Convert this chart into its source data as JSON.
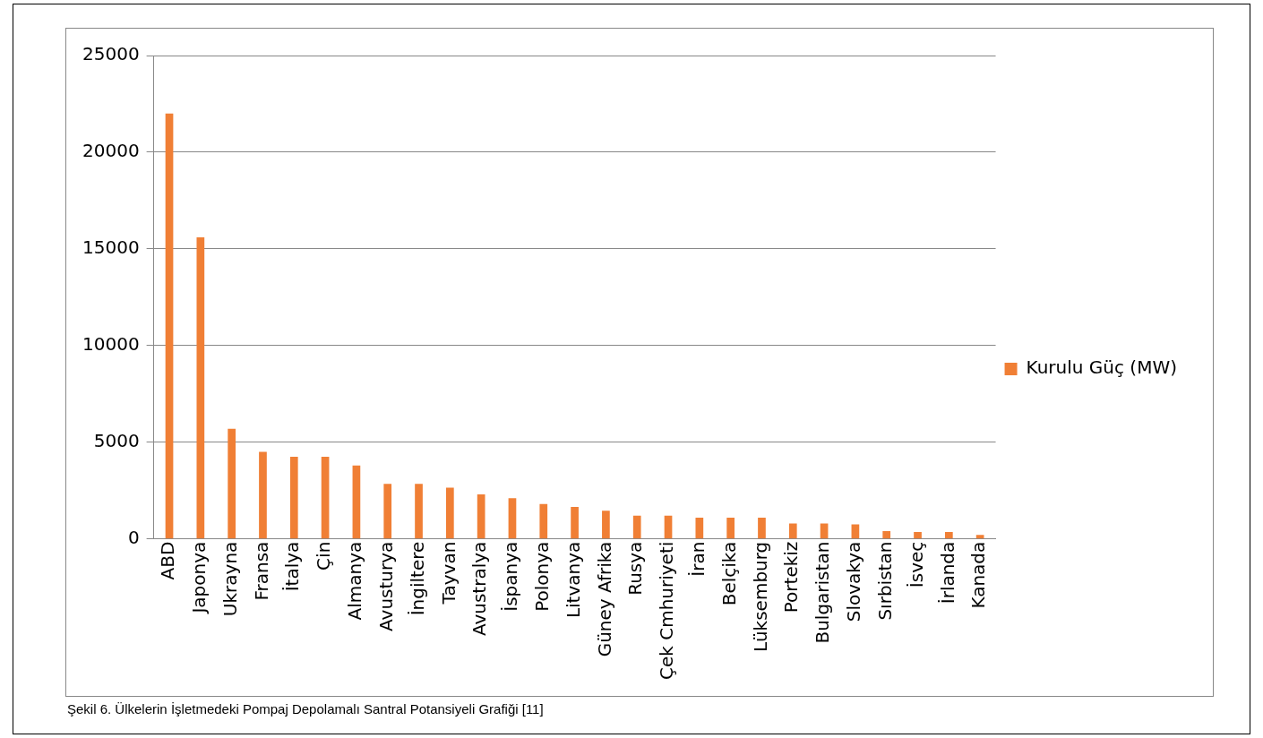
{
  "chart_data": {
    "type": "bar",
    "categories": [
      "ABD",
      "Japonya",
      "Ukrayna",
      "Fransa",
      "İtalya",
      "Çin",
      "Almanya",
      "Avusturya",
      "İngiltere",
      "Tayvan",
      "Avustralya",
      "İspanya",
      "Polonya",
      "Litvanya",
      "Güney Afrika",
      "Rusya",
      "Çek Cmhuriyeti",
      "İran",
      "Belçika",
      "Lüksemburg",
      "Portekiz",
      "Bulgaristan",
      "Slovakya",
      "Sırbistan",
      "İsveç",
      "İrlanda",
      "Kanada"
    ],
    "series": [
      {
        "name": "Kurulu Güç (MW)",
        "color": "#f07f35",
        "values": [
          22000,
          15600,
          5700,
          4500,
          4250,
          4250,
          3800,
          2850,
          2850,
          2650,
          2300,
          2100,
          1800,
          1650,
          1450,
          1200,
          1200,
          1100,
          1100,
          1100,
          800,
          800,
          750,
          400,
          350,
          350,
          200
        ]
      }
    ],
    "ylim": [
      0,
      25000
    ],
    "yticks": [
      0,
      5000,
      10000,
      15000,
      20000,
      25000
    ],
    "grid": "y",
    "legend": "right",
    "annotations": [
      "Şekil 6. Ülkelerin İşletmedeki Pompaj Depolamalı Santral Potansiyeli Grafiği [11]"
    ]
  }
}
